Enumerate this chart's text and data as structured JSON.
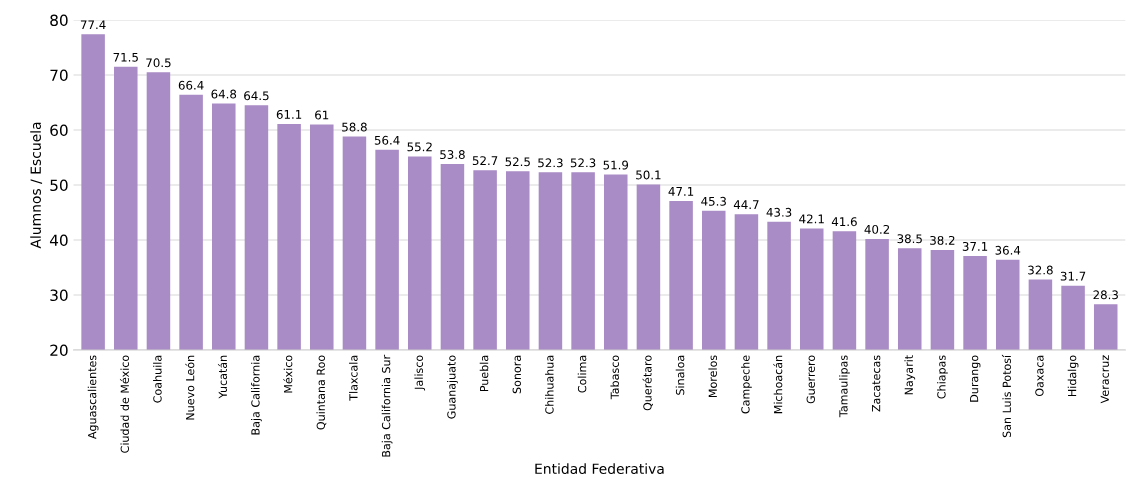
{
  "chart_data": {
    "type": "bar",
    "xlabel": "Entidad Federativa",
    "ylabel": "Alumnos / Escuela",
    "categories": [
      "Aguascalientes",
      "Ciudad de México",
      "Coahuila",
      "Nuevo León",
      "Yucatán",
      "Baja California",
      "México",
      "Quintana Roo",
      "Tlaxcala",
      "Baja California Sur",
      "Jalisco",
      "Guanajuato",
      "Puebla",
      "Sonora",
      "Chihuahua",
      "Colima",
      "Tabasco",
      "Querétaro",
      "Sinaloa",
      "Morelos",
      "Campeche",
      "Michoacán",
      "Guerrero",
      "Tamaulipas",
      "Zacatecas",
      "Nayarit",
      "Chiapas",
      "Durango",
      "San Luis Potosí",
      "Oaxaca",
      "Hidalgo",
      "Veracruz"
    ],
    "values": [
      77.4,
      71.5,
      70.5,
      66.4,
      64.8,
      64.5,
      61.1,
      61,
      58.8,
      56.4,
      55.2,
      53.8,
      52.7,
      52.5,
      52.3,
      52.3,
      51.9,
      50.1,
      47.1,
      45.3,
      44.7,
      43.3,
      42.1,
      41.6,
      40.2,
      38.5,
      38.2,
      37.1,
      36.4,
      32.8,
      31.7,
      28.3
    ],
    "color": "#a98bc5",
    "ylim": [
      20,
      80
    ],
    "yticks": [
      20,
      30,
      40,
      50,
      60,
      70,
      80
    ],
    "grid": "y",
    "data_labels": true,
    "legend": false
  }
}
